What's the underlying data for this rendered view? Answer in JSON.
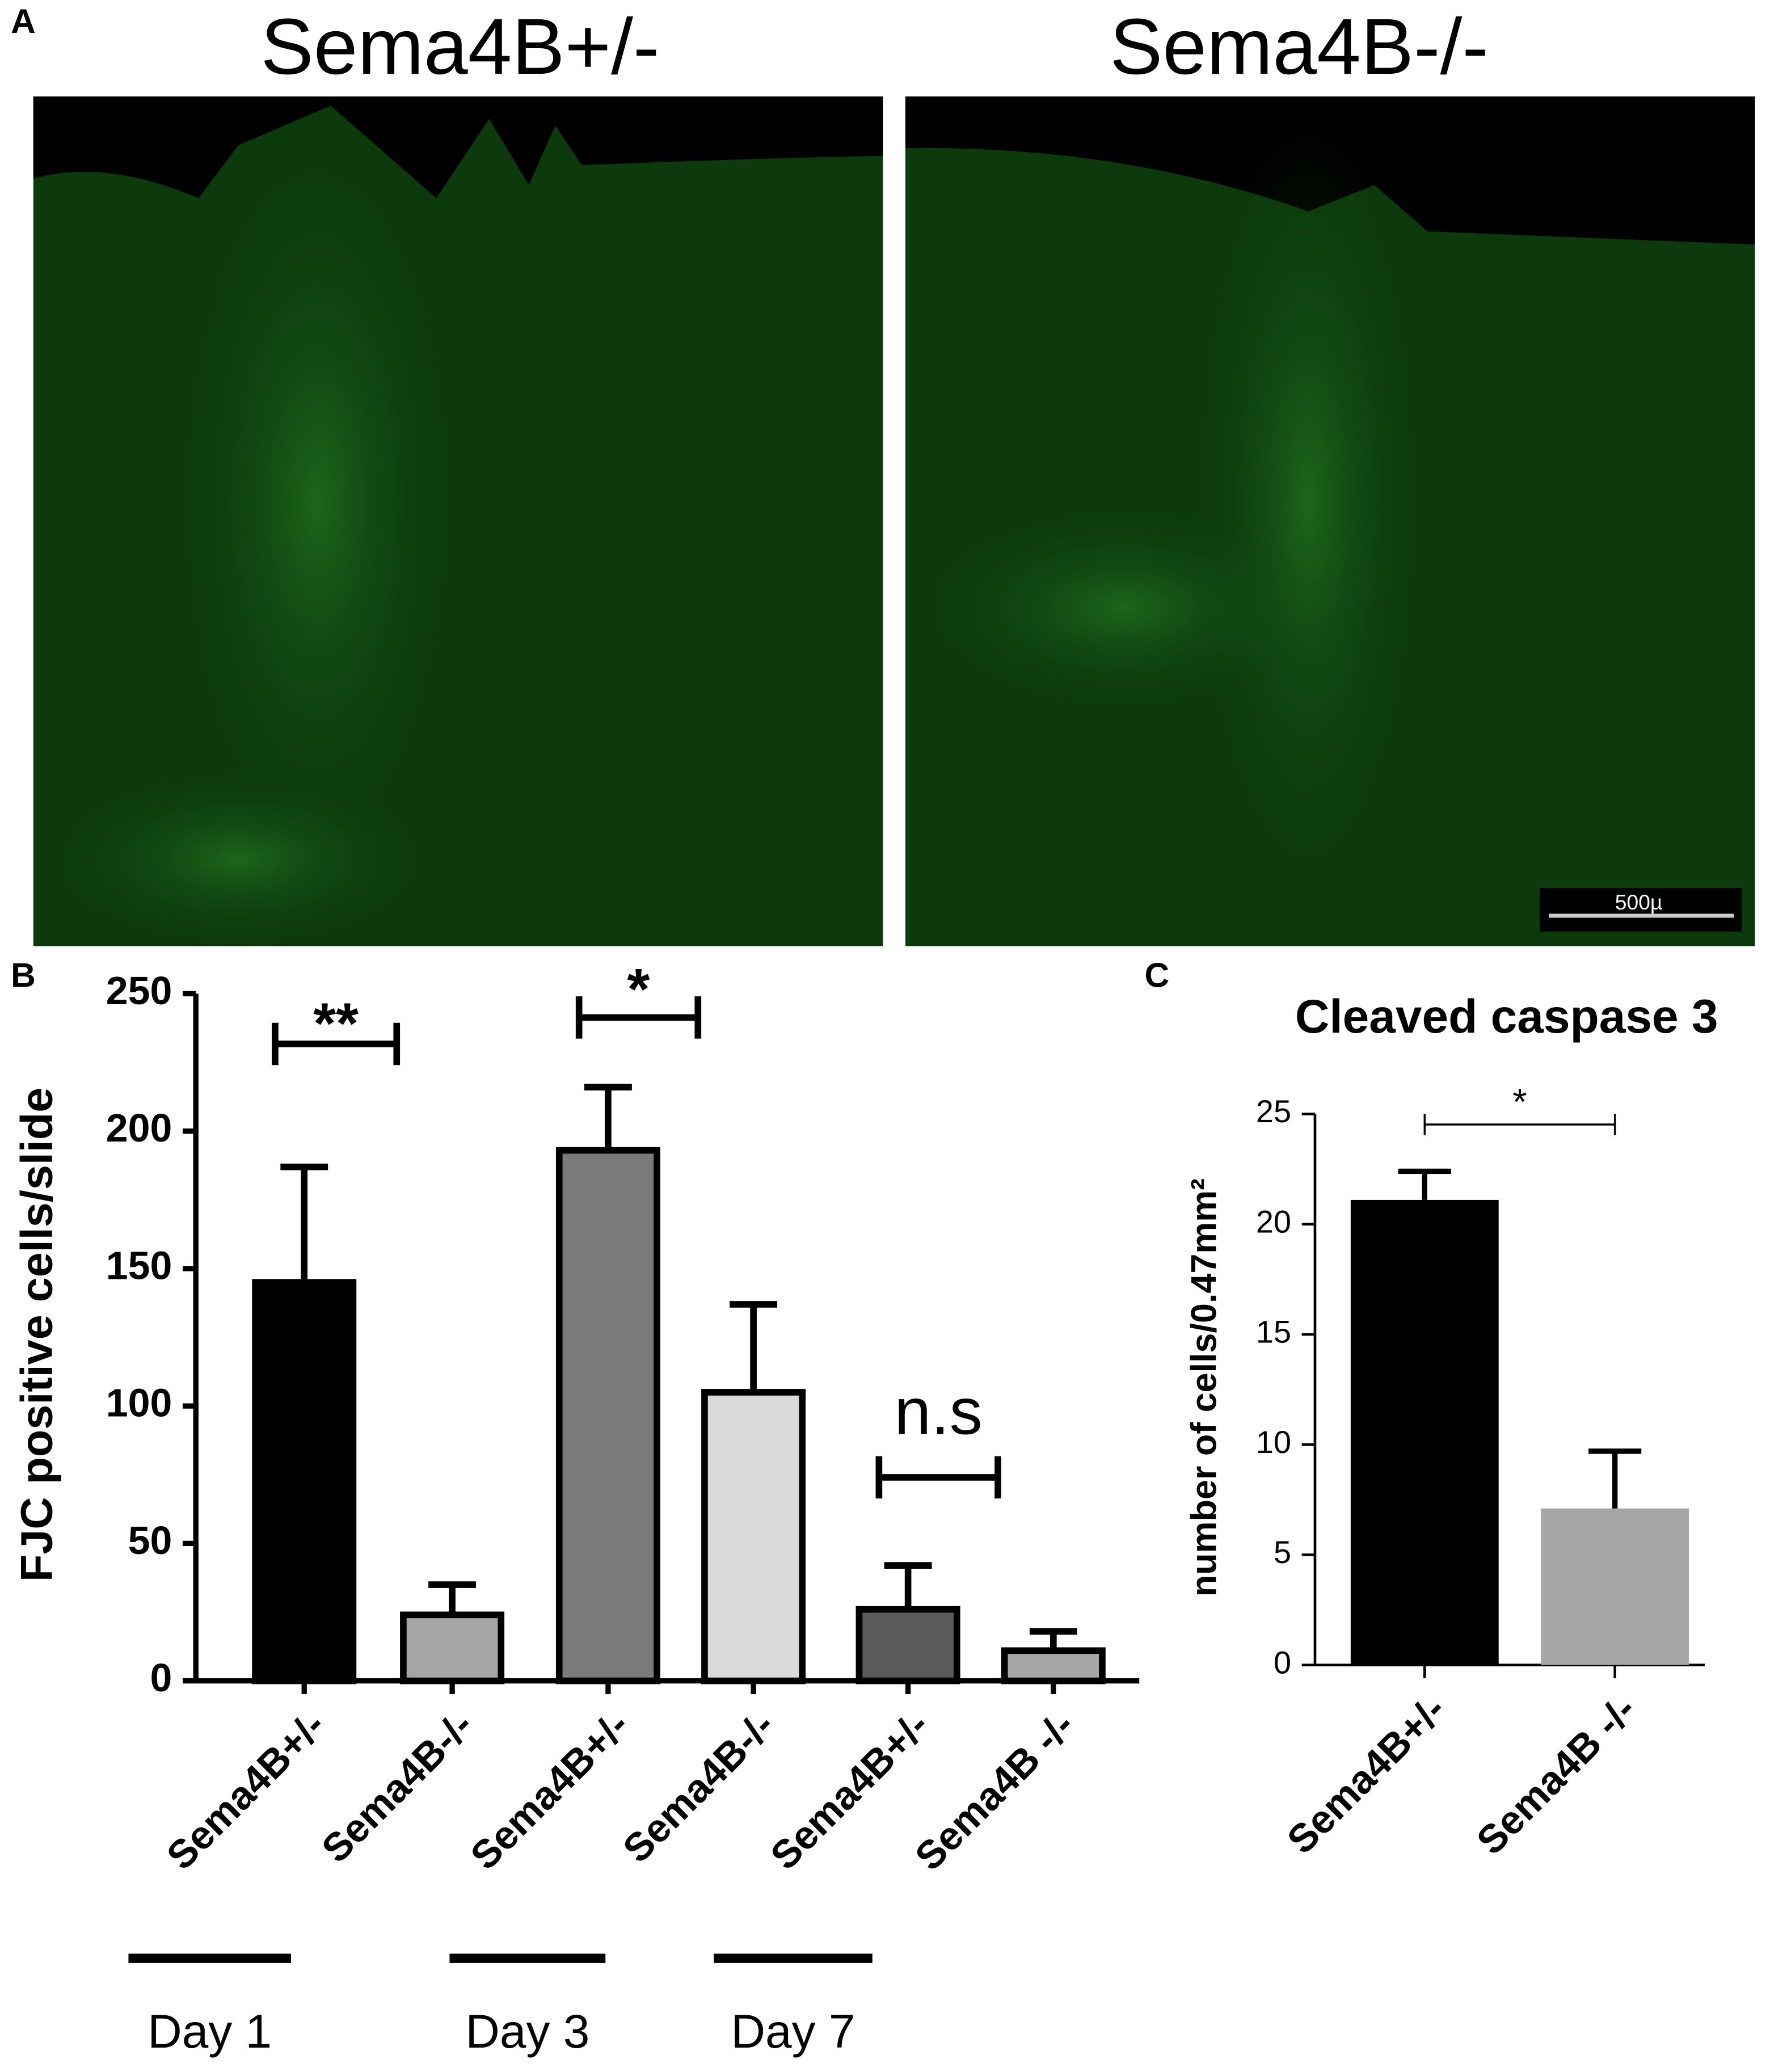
{
  "panels": {
    "labels": [
      "A",
      "B",
      "C"
    ],
    "image_titles": [
      "Sema4B+/-",
      "Sema4B-/-"
    ],
    "scale_bar": "500µ"
  },
  "chart_data": [
    {
      "type": "bar",
      "y_label": "FJC positive cells/slide",
      "categories": [
        "Sema4B+/-",
        "Sema4B-/-",
        "Sema4B+/-",
        "Sema4B-/-",
        "Sema4B+/-",
        "Sema4B -/-"
      ],
      "values": [
        145,
        24,
        193,
        105,
        26,
        11
      ],
      "errors": [
        42,
        11,
        23,
        32,
        16,
        7
      ],
      "colors": [
        "#000000",
        "#a6a6a6",
        "#7a7a7a",
        "#d9d9d9",
        "#5a5a5a",
        "#a6a6a6"
      ],
      "ylim": [
        0,
        250
      ],
      "yticks": [
        0,
        50,
        100,
        150,
        200,
        250
      ],
      "groups": [
        "Day 1",
        "Day 3",
        "Day 7"
      ],
      "significance": [
        "**",
        "*",
        "n.s"
      ]
    },
    {
      "type": "bar",
      "title": "Cleaved caspase 3",
      "y_label": "number of cells/0.47mm²",
      "categories": [
        "Sema4B+/-",
        "Sema4B -/-"
      ],
      "values": [
        21.1,
        7.1
      ],
      "errors": [
        1.3,
        2.6
      ],
      "colors": [
        "#000000",
        "#a6a6a6"
      ],
      "ylim": [
        0,
        25
      ],
      "yticks": [
        0,
        5,
        10,
        15,
        20,
        25
      ],
      "significance": [
        "*"
      ]
    }
  ]
}
